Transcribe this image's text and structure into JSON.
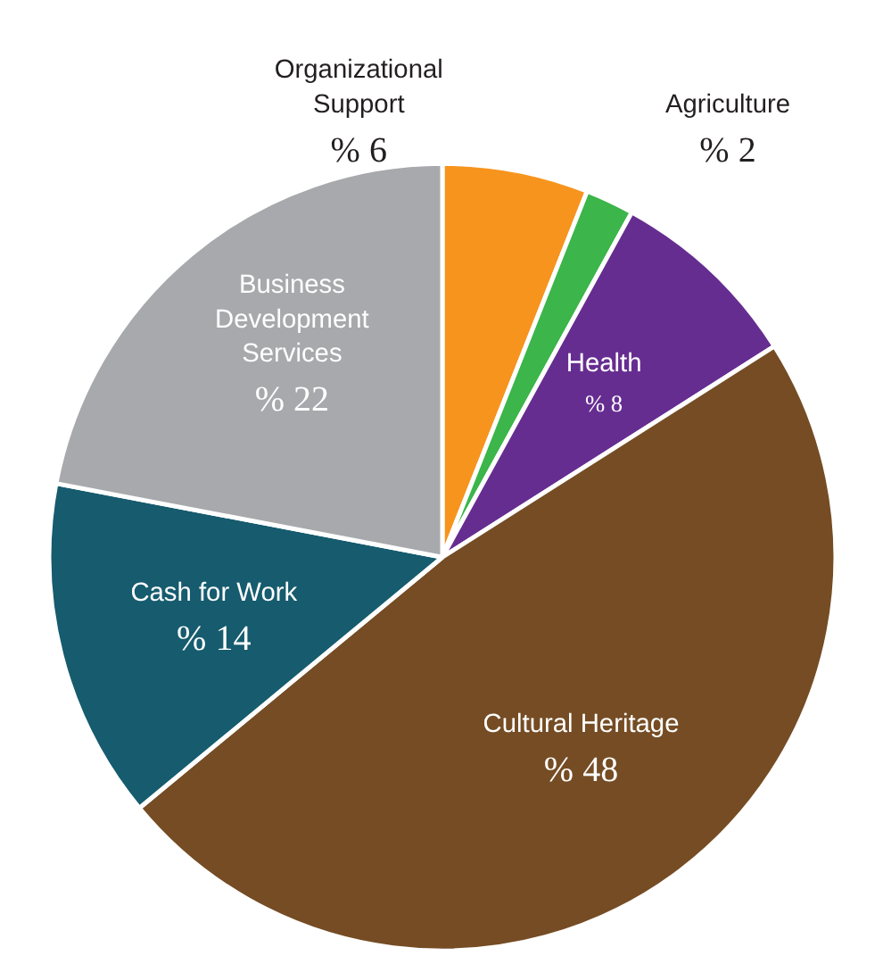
{
  "chart_data": {
    "type": "pie",
    "categories": [
      "Organizational Support",
      "Agriculture",
      "Health",
      "Cultural Heritage",
      "Cash for Work",
      "Business Development Services"
    ],
    "values": [
      6,
      2,
      8,
      48,
      14,
      22
    ],
    "colors": [
      "#f7941d",
      "#3cb54a",
      "#662d91",
      "#754c24",
      "#165b6e",
      "#a7a9ac"
    ],
    "value_labels": [
      "% 6",
      "% 2",
      "% 8",
      "% 48",
      "% 14",
      "% 22"
    ],
    "legend": false
  }
}
